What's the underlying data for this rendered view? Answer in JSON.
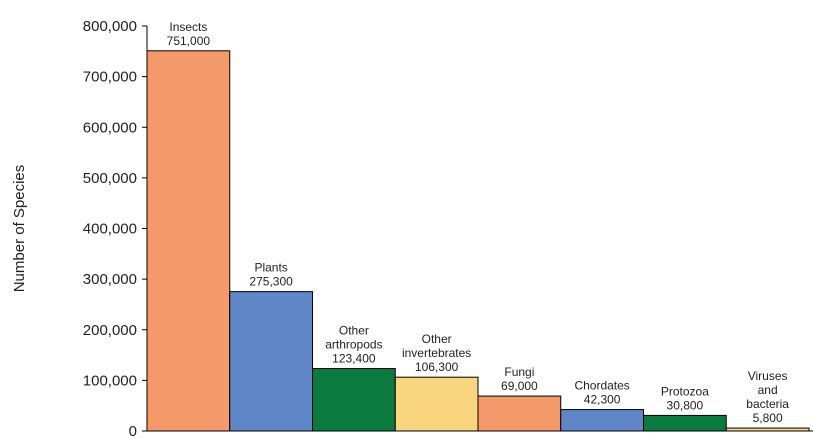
{
  "chart_data": {
    "type": "bar",
    "title": "",
    "xlabel": "",
    "ylabel": "Number of Species",
    "ylim": [
      0,
      800000
    ],
    "yticks": [
      0,
      100000,
      200000,
      300000,
      400000,
      500000,
      600000,
      700000,
      800000
    ],
    "ytick_labels": [
      "0",
      "100,000",
      "200,000",
      "300,000",
      "400,000",
      "500,000",
      "600,000",
      "700,000",
      "800,000"
    ],
    "grid": false,
    "legend": "none",
    "bars": [
      {
        "category": [
          "Insects"
        ],
        "value": 751000,
        "value_label": "751,000",
        "color": "#F49A6A"
      },
      {
        "category": [
          "Plants"
        ],
        "value": 275300,
        "value_label": "275,300",
        "color": "#5F86C7"
      },
      {
        "category": [
          "Other",
          "arthropods"
        ],
        "value": 123400,
        "value_label": "123,400",
        "color": "#0B7A3E"
      },
      {
        "category": [
          "Other",
          "invertebrates"
        ],
        "value": 106300,
        "value_label": "106,300",
        "color": "#F8D57E"
      },
      {
        "category": [
          "Fungi"
        ],
        "value": 69000,
        "value_label": "69,000",
        "color": "#F49A6A"
      },
      {
        "category": [
          "Chordates"
        ],
        "value": 42300,
        "value_label": "42,300",
        "color": "#5F86C7"
      },
      {
        "category": [
          "Protozoa"
        ],
        "value": 30800,
        "value_label": "30,800",
        "color": "#0B7A3E"
      },
      {
        "category": [
          "Viruses",
          "and",
          "bacteria"
        ],
        "value": 5800,
        "value_label": "5,800",
        "color": "#F8D57E"
      }
    ]
  }
}
